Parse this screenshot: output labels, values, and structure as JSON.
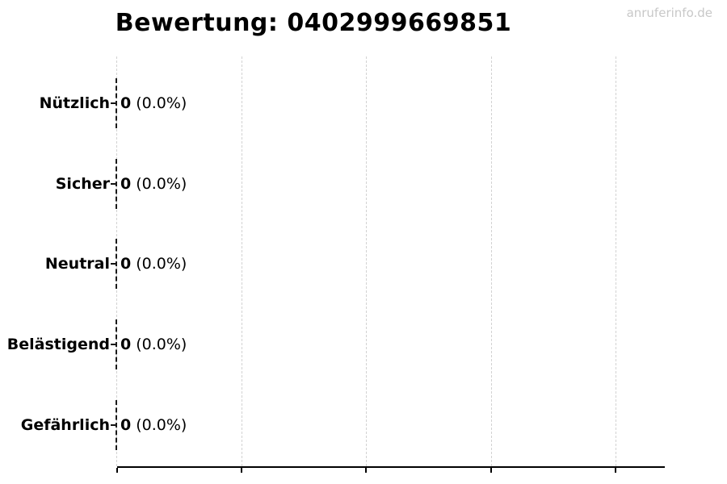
{
  "title": "Bewertung: 0402999669851",
  "watermark": "anruferinfo.de",
  "chart_data": {
    "type": "bar",
    "orientation": "horizontal",
    "title": "Bewertung: 0402999669851",
    "categories": [
      "Nützlich",
      "Sicher",
      "Neutral",
      "Belästigend",
      "Gefährlich"
    ],
    "values": [
      0,
      0,
      0,
      0,
      0
    ],
    "percentages": [
      0.0,
      0.0,
      0.0,
      0.0,
      0.0
    ],
    "value_label_format": "count (percent%)",
    "xlabel": "",
    "ylabel": "",
    "x_tick_count": 5,
    "x_tick_labels": [],
    "grid": "vertical dashed gridlines at each x tick",
    "legend": "none",
    "rows": [
      {
        "label": "Nützlich",
        "value": "0",
        "percent": "(0.0%)"
      },
      {
        "label": "Sicher",
        "value": "0",
        "percent": "(0.0%)"
      },
      {
        "label": "Neutral",
        "value": "0",
        "percent": "(0.0%)"
      },
      {
        "label": "Belästigend",
        "value": "0",
        "percent": "(0.0%)"
      },
      {
        "label": "Gefährlich",
        "value": "0",
        "percent": "(0.0%)"
      }
    ],
    "colors": {
      "background": "#ffffff",
      "text": "#000000",
      "axis": "#000000",
      "gridline": "#d2d2d2",
      "bar_edge": "#1a1a1a",
      "watermark": "#c8c8c8"
    }
  }
}
